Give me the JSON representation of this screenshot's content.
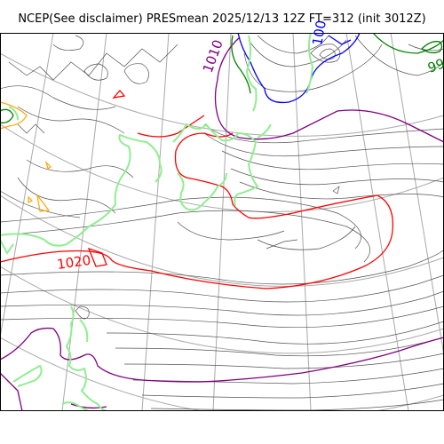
{
  "title": "NCEP(See disclaimer) PRESmean 2025/12/13 12Z FT=312 (init 3012Z)",
  "contour_labels": {
    "label_1020": "1020",
    "label_1010": "1010",
    "label_1000": "100",
    "label_990": "99"
  },
  "colors": {
    "background": "#ffffff",
    "coast": "#90ee90",
    "grid": "#a9a9a9",
    "isobar_thin": "#555555",
    "isobar_1020": "#ff0000",
    "isobar_1010": "#800080",
    "isobar_1000": "#0000ff",
    "isobar_990": "#008000",
    "isobar_orange": "#ffa500"
  }
}
